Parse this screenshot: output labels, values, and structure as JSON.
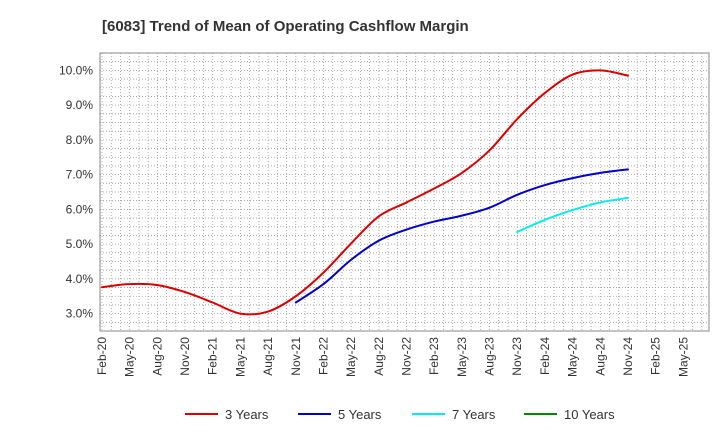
{
  "chart_data": {
    "type": "line",
    "title": "[6083]  Trend of Mean of Operating Cashflow Margin",
    "xlabel": "",
    "ylabel": "",
    "ylim": [
      2.5,
      10.5
    ],
    "y_ticks": [
      3.0,
      4.0,
      5.0,
      6.0,
      7.0,
      8.0,
      9.0,
      10.0
    ],
    "y_tick_labels": [
      "3.0%",
      "4.0%",
      "5.0%",
      "6.0%",
      "7.0%",
      "8.0%",
      "9.0%",
      "10.0%"
    ],
    "x_tick_labels": [
      "Feb-20",
      "May-20",
      "Aug-20",
      "Nov-20",
      "Feb-21",
      "May-21",
      "Aug-21",
      "Nov-21",
      "Feb-22",
      "May-22",
      "Aug-22",
      "Nov-22",
      "Feb-23",
      "May-23",
      "Aug-23",
      "Nov-23",
      "Feb-24",
      "May-24",
      "Aug-24",
      "Nov-24",
      "Feb-25",
      "May-25"
    ],
    "grid": true,
    "legend_position": "bottom",
    "series": [
      {
        "name": "3 Years",
        "color": "#dd0000",
        "points": [
          [
            0,
            3.76
          ],
          [
            1,
            3.85
          ],
          [
            2,
            3.82
          ],
          [
            3,
            3.62
          ],
          [
            4,
            3.32
          ],
          [
            5,
            3.0
          ],
          [
            6,
            3.06
          ],
          [
            7,
            3.5
          ],
          [
            8,
            4.18
          ],
          [
            9,
            5.02
          ],
          [
            10,
            5.8
          ],
          [
            11,
            6.2
          ],
          [
            12,
            6.6
          ],
          [
            13,
            7.05
          ],
          [
            14,
            7.7
          ],
          [
            15,
            8.6
          ],
          [
            16,
            9.35
          ],
          [
            17,
            9.88
          ],
          [
            18,
            10.0
          ],
          [
            19,
            9.85
          ]
        ]
      },
      {
        "name": "5 Years",
        "color": "#0000cc",
        "points": [
          [
            7,
            3.32
          ],
          [
            8,
            3.85
          ],
          [
            9,
            4.55
          ],
          [
            10,
            5.1
          ],
          [
            11,
            5.42
          ],
          [
            12,
            5.65
          ],
          [
            13,
            5.82
          ],
          [
            14,
            6.05
          ],
          [
            15,
            6.42
          ],
          [
            16,
            6.7
          ],
          [
            17,
            6.9
          ],
          [
            18,
            7.05
          ],
          [
            19,
            7.15
          ]
        ]
      },
      {
        "name": "7 Years",
        "color": "#00eeee",
        "points": [
          [
            15,
            5.35
          ],
          [
            16,
            5.7
          ],
          [
            17,
            5.98
          ],
          [
            18,
            6.2
          ],
          [
            19,
            6.33
          ]
        ]
      },
      {
        "name": "10 Years",
        "color": "#008800",
        "points": []
      }
    ]
  }
}
